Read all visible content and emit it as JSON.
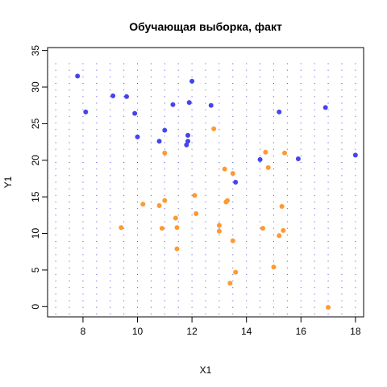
{
  "chart_data": {
    "type": "scatter",
    "title": "Обучающая выборка, факт",
    "xlabel": "X1",
    "ylabel": "Y1",
    "xlim": [
      6.7,
      18.3
    ],
    "ylim": [
      -1.4,
      35.4
    ],
    "x_ticks": [
      8,
      10,
      12,
      14,
      16,
      18
    ],
    "y_ticks": [
      0,
      5,
      10,
      15,
      20,
      25,
      30,
      35
    ],
    "grid_dots": {
      "color": "#4a4ad6",
      "x": [
        7,
        7.5,
        8,
        8.5,
        9,
        9.5,
        10,
        10.5,
        11,
        11.5,
        12,
        12.5,
        13,
        13.5,
        14,
        14.5,
        15,
        15.5,
        16,
        16.5,
        17,
        17.5,
        18
      ],
      "y_from": -1,
      "y_to": 34,
      "y_step": 0.9
    },
    "series": [
      {
        "color": "#4444ee",
        "points": [
          [
            7.8,
            31.5
          ],
          [
            8.1,
            26.6
          ],
          [
            9.1,
            28.8
          ],
          [
            9.6,
            28.7
          ],
          [
            9.9,
            26.4
          ],
          [
            10.0,
            23.2
          ],
          [
            10.8,
            22.6
          ],
          [
            11.0,
            24.1
          ],
          [
            11.3,
            27.6
          ],
          [
            11.8,
            22.1
          ],
          [
            11.85,
            22.6
          ],
          [
            11.85,
            23.4
          ],
          [
            11.9,
            27.9
          ],
          [
            12.0,
            30.8
          ],
          [
            12.7,
            27.5
          ],
          [
            14.5,
            20.1
          ],
          [
            13.6,
            17.0
          ],
          [
            15.2,
            26.6
          ],
          [
            15.9,
            20.2
          ],
          [
            16.9,
            27.2
          ],
          [
            18.0,
            20.7
          ]
        ]
      },
      {
        "color": "#ff9933",
        "points": [
          [
            9.4,
            10.8
          ],
          [
            10.2,
            14.0
          ],
          [
            10.8,
            13.8
          ],
          [
            10.9,
            10.7
          ],
          [
            11.0,
            14.5
          ],
          [
            11.0,
            21.0
          ],
          [
            11.4,
            12.1
          ],
          [
            11.45,
            10.8
          ],
          [
            11.45,
            7.9
          ],
          [
            12.1,
            15.2
          ],
          [
            12.15,
            12.7
          ],
          [
            12.8,
            24.3
          ],
          [
            13.0,
            11.1
          ],
          [
            13.0,
            10.3
          ],
          [
            13.2,
            18.8
          ],
          [
            13.25,
            14.3
          ],
          [
            13.3,
            14.5
          ],
          [
            13.4,
            3.2
          ],
          [
            13.5,
            18.2
          ],
          [
            13.5,
            9.0
          ],
          [
            13.6,
            4.7
          ],
          [
            14.6,
            10.7
          ],
          [
            14.7,
            21.1
          ],
          [
            14.8,
            19.0
          ],
          [
            15.0,
            5.4
          ],
          [
            15.2,
            9.7
          ],
          [
            15.3,
            13.7
          ],
          [
            15.35,
            10.4
          ],
          [
            15.4,
            21.0
          ],
          [
            17.0,
            -0.1
          ]
        ]
      }
    ]
  }
}
